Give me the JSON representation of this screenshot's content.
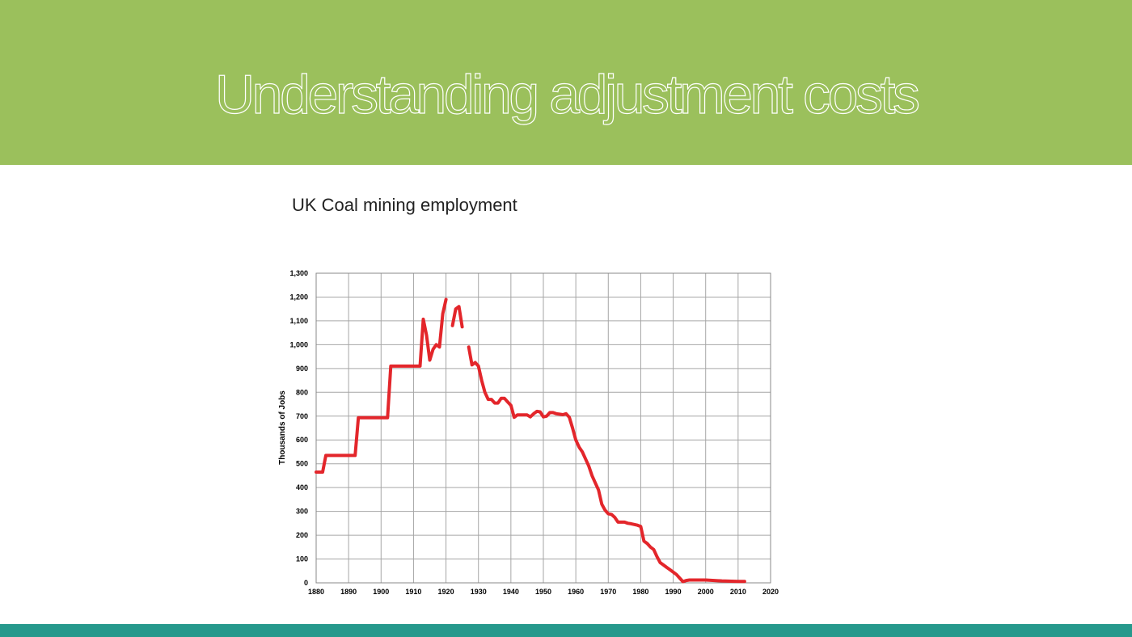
{
  "slide_title": "Understanding adjustment costs",
  "chart_data": {
    "type": "line",
    "title": "UK Coal mining employment",
    "y_label": "Thousands of Jobs",
    "x": [
      1880,
      1882,
      1883,
      1892,
      1893,
      1902,
      1903,
      1912,
      1913,
      1914,
      1915,
      1916,
      1917,
      1918,
      1919,
      1920,
      1921,
      1922,
      1923,
      1924,
      1925,
      1926,
      1927,
      1928,
      1929,
      1930,
      1931,
      1932,
      1933,
      1934,
      1935,
      1936,
      1937,
      1938,
      1939,
      1940,
      1941,
      1942,
      1943,
      1944,
      1945,
      1946,
      1947,
      1948,
      1949,
      1950,
      1951,
      1952,
      1953,
      1954,
      1955,
      1956,
      1957,
      1958,
      1959,
      1960,
      1961,
      1962,
      1963,
      1964,
      1965,
      1966,
      1967,
      1968,
      1969,
      1970,
      1971,
      1972,
      1973,
      1974,
      1975,
      1976,
      1977,
      1978,
      1979,
      1980,
      1981,
      1982,
      1983,
      1984,
      1985,
      1986,
      1987,
      1988,
      1989,
      1990,
      1991,
      1992,
      1993,
      1994,
      1995,
      2000,
      2005,
      2010,
      2012
    ],
    "series": [
      {
        "name": "Coal mining employment",
        "color": "#e3262b",
        "values": [
          465,
          465,
          535,
          535,
          693,
          693,
          910,
          910,
          1107,
          1040,
          935,
          980,
          1000,
          990,
          1130,
          1190,
          null,
          1080,
          1150,
          1160,
          1075,
          null,
          990,
          915,
          925,
          910,
          850,
          800,
          770,
          770,
          755,
          755,
          775,
          775,
          760,
          745,
          695,
          705,
          705,
          705,
          705,
          697,
          710,
          720,
          718,
          697,
          700,
          715,
          715,
          710,
          708,
          706,
          710,
          695,
          650,
          600,
          570,
          550,
          520,
          490,
          450,
          420,
          390,
          330,
          305,
          290,
          287,
          275,
          255,
          255,
          255,
          250,
          248,
          245,
          242,
          237,
          175,
          165,
          150,
          140,
          110,
          85,
          75,
          65,
          55,
          45,
          35,
          20,
          5,
          10,
          12,
          12,
          8,
          6,
          6
        ]
      }
    ],
    "xlim": [
      1880,
      2020
    ],
    "xticks": [
      1880,
      1890,
      1900,
      1910,
      1920,
      1930,
      1940,
      1950,
      1960,
      1970,
      1980,
      1990,
      2000,
      2010,
      2020
    ],
    "ylim": [
      0,
      1300
    ],
    "yticks": [
      0,
      100,
      200,
      300,
      400,
      500,
      600,
      700,
      800,
      900,
      {
        "value": 1000,
        "label": "1,000"
      },
      {
        "value": 1100,
        "label": "1,100"
      },
      {
        "value": 1200,
        "label": "1,200"
      },
      {
        "value": 1300,
        "label": "1,300"
      }
    ],
    "grid": true
  }
}
